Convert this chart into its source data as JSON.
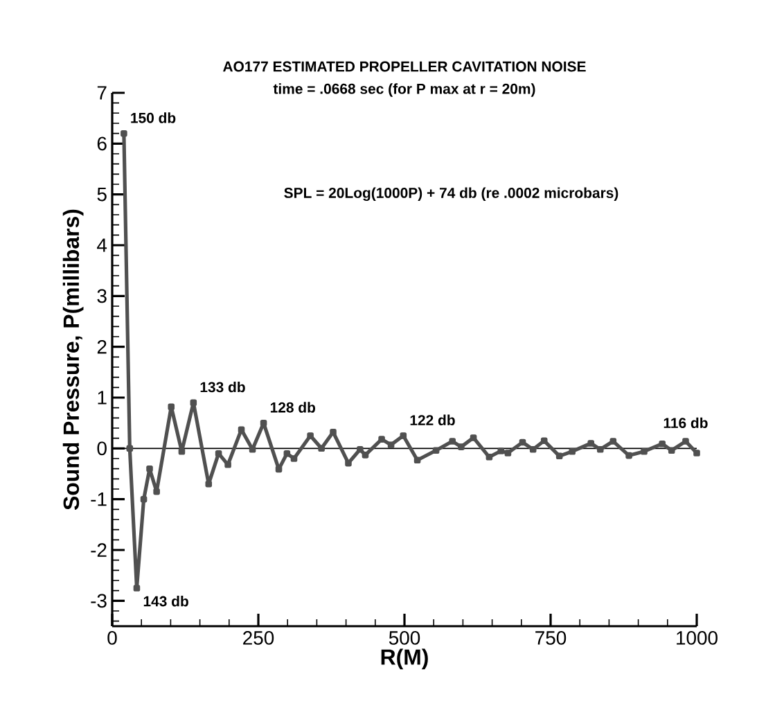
{
  "chart_data": {
    "type": "line",
    "title": "AO177  ESTIMATED PROPELLER CAVITATION NOISE",
    "subtitle": "time = .0668 sec  (for P max at r = 20m)",
    "xlabel": "R(M)",
    "ylabel": "Sound Pressure, P(millibars)",
    "x": [
      20,
      30,
      42,
      54,
      64,
      76,
      101,
      119,
      139,
      165,
      182,
      198,
      221,
      240,
      259,
      285,
      299,
      311,
      339,
      358,
      378,
      404,
      424,
      433,
      461,
      477,
      498,
      522,
      554,
      582,
      597,
      618,
      645,
      665,
      677,
      702,
      720,
      739,
      765,
      787,
      819,
      835,
      857,
      884,
      910,
      941,
      957,
      981,
      1000
    ],
    "series": [
      {
        "color": "#505050",
        "values": [
          6.2,
          0.0,
          -2.75,
          -1.0,
          -0.4,
          -0.85,
          0.82,
          -0.06,
          0.9,
          -0.7,
          -0.1,
          -0.32,
          0.37,
          -0.02,
          0.5,
          -0.41,
          -0.1,
          -0.2,
          0.25,
          0.0,
          0.32,
          -0.29,
          -0.02,
          -0.13,
          0.18,
          0.07,
          0.25,
          -0.23,
          -0.04,
          0.14,
          0.03,
          0.21,
          -0.17,
          -0.05,
          -0.09,
          0.12,
          -0.02,
          0.15,
          -0.15,
          -0.06,
          0.1,
          -0.02,
          0.14,
          -0.14,
          -0.06,
          0.09,
          -0.04,
          0.14,
          -0.09
        ]
      }
    ],
    "marker": "square",
    "line_style": "solid",
    "xlim": [
      0,
      1000
    ],
    "ylim": [
      -3.5,
      7
    ],
    "xticks": [
      0,
      250,
      500,
      750,
      1000,
      {
        "value": 50,
        "label": null
      },
      {
        "value": 100,
        "label": null
      },
      {
        "value": 150,
        "label": null
      },
      {
        "value": 200,
        "label": null
      },
      {
        "value": 300,
        "label": null
      },
      {
        "value": 350,
        "label": null
      },
      {
        "value": 400,
        "label": null
      },
      {
        "value": 450,
        "label": null
      },
      {
        "value": 550,
        "label": null
      },
      {
        "value": 600,
        "label": null
      },
      {
        "value": 650,
        "label": null
      },
      {
        "value": 700,
        "label": null
      },
      {
        "value": 800,
        "label": null
      },
      {
        "value": 850,
        "label": null
      },
      {
        "value": 900,
        "label": null
      },
      {
        "value": 950,
        "label": null
      }
    ],
    "yticks": [
      -3,
      -2,
      -1,
      0,
      1,
      2,
      3,
      4,
      5,
      6,
      7,
      {
        "value": -3.4,
        "label": null
      },
      {
        "value": -3.2,
        "label": null
      },
      {
        "value": -2.8,
        "label": null
      },
      {
        "value": -2.6,
        "label": null
      },
      {
        "value": -2.4,
        "label": null
      },
      {
        "value": -2.2,
        "label": null
      },
      {
        "value": -1.8,
        "label": null
      },
      {
        "value": -1.6,
        "label": null
      },
      {
        "value": -1.4,
        "label": null
      },
      {
        "value": -1.2,
        "label": null
      },
      {
        "value": -0.8,
        "label": null
      },
      {
        "value": -0.6,
        "label": null
      },
      {
        "value": -0.4,
        "label": null
      },
      {
        "value": -0.2,
        "label": null
      },
      {
        "value": 0.2,
        "label": null
      },
      {
        "value": 0.4,
        "label": null
      },
      {
        "value": 0.6,
        "label": null
      },
      {
        "value": 0.8,
        "label": null
      },
      {
        "value": 1.2,
        "label": null
      },
      {
        "value": 1.4,
        "label": null
      },
      {
        "value": 1.6,
        "label": null
      },
      {
        "value": 1.8,
        "label": null
      },
      {
        "value": 2.2,
        "label": null
      },
      {
        "value": 2.4,
        "label": null
      },
      {
        "value": 2.6,
        "label": null
      },
      {
        "value": 2.8,
        "label": null
      },
      {
        "value": 3.2,
        "label": null
      },
      {
        "value": 3.4,
        "label": null
      },
      {
        "value": 3.6,
        "label": null
      },
      {
        "value": 3.8,
        "label": null
      },
      {
        "value": 4.2,
        "label": null
      },
      {
        "value": 4.4,
        "label": null
      },
      {
        "value": 4.6,
        "label": null
      },
      {
        "value": 4.8,
        "label": null
      },
      {
        "value": 5.2,
        "label": null
      },
      {
        "value": 5.4,
        "label": null
      },
      {
        "value": 5.6,
        "label": null
      },
      {
        "value": 5.8,
        "label": null
      },
      {
        "value": 6.2,
        "label": null
      },
      {
        "value": 6.4,
        "label": null
      },
      {
        "value": 6.6,
        "label": null
      },
      {
        "value": 6.8,
        "label": null
      }
    ],
    "ref_lines": [
      {
        "axis": "y",
        "value": 0,
        "color": "#000000"
      }
    ],
    "annotations": [
      {
        "text": "150 db",
        "x": 20,
        "y": 6.2
      },
      {
        "text": "143 db",
        "x": 42,
        "y": -2.75
      },
      {
        "text": "133 db",
        "x": 139,
        "y": 0.9
      },
      {
        "text": "128 db",
        "x": 259,
        "y": 0.5
      },
      {
        "text": "122 db",
        "x": 498,
        "y": 0.25
      },
      {
        "text": "116 db",
        "x": 981,
        "y": 0.14
      },
      "SPL = 20Log(1000P) + 74  db     (re .0002 microbars)"
    ]
  }
}
